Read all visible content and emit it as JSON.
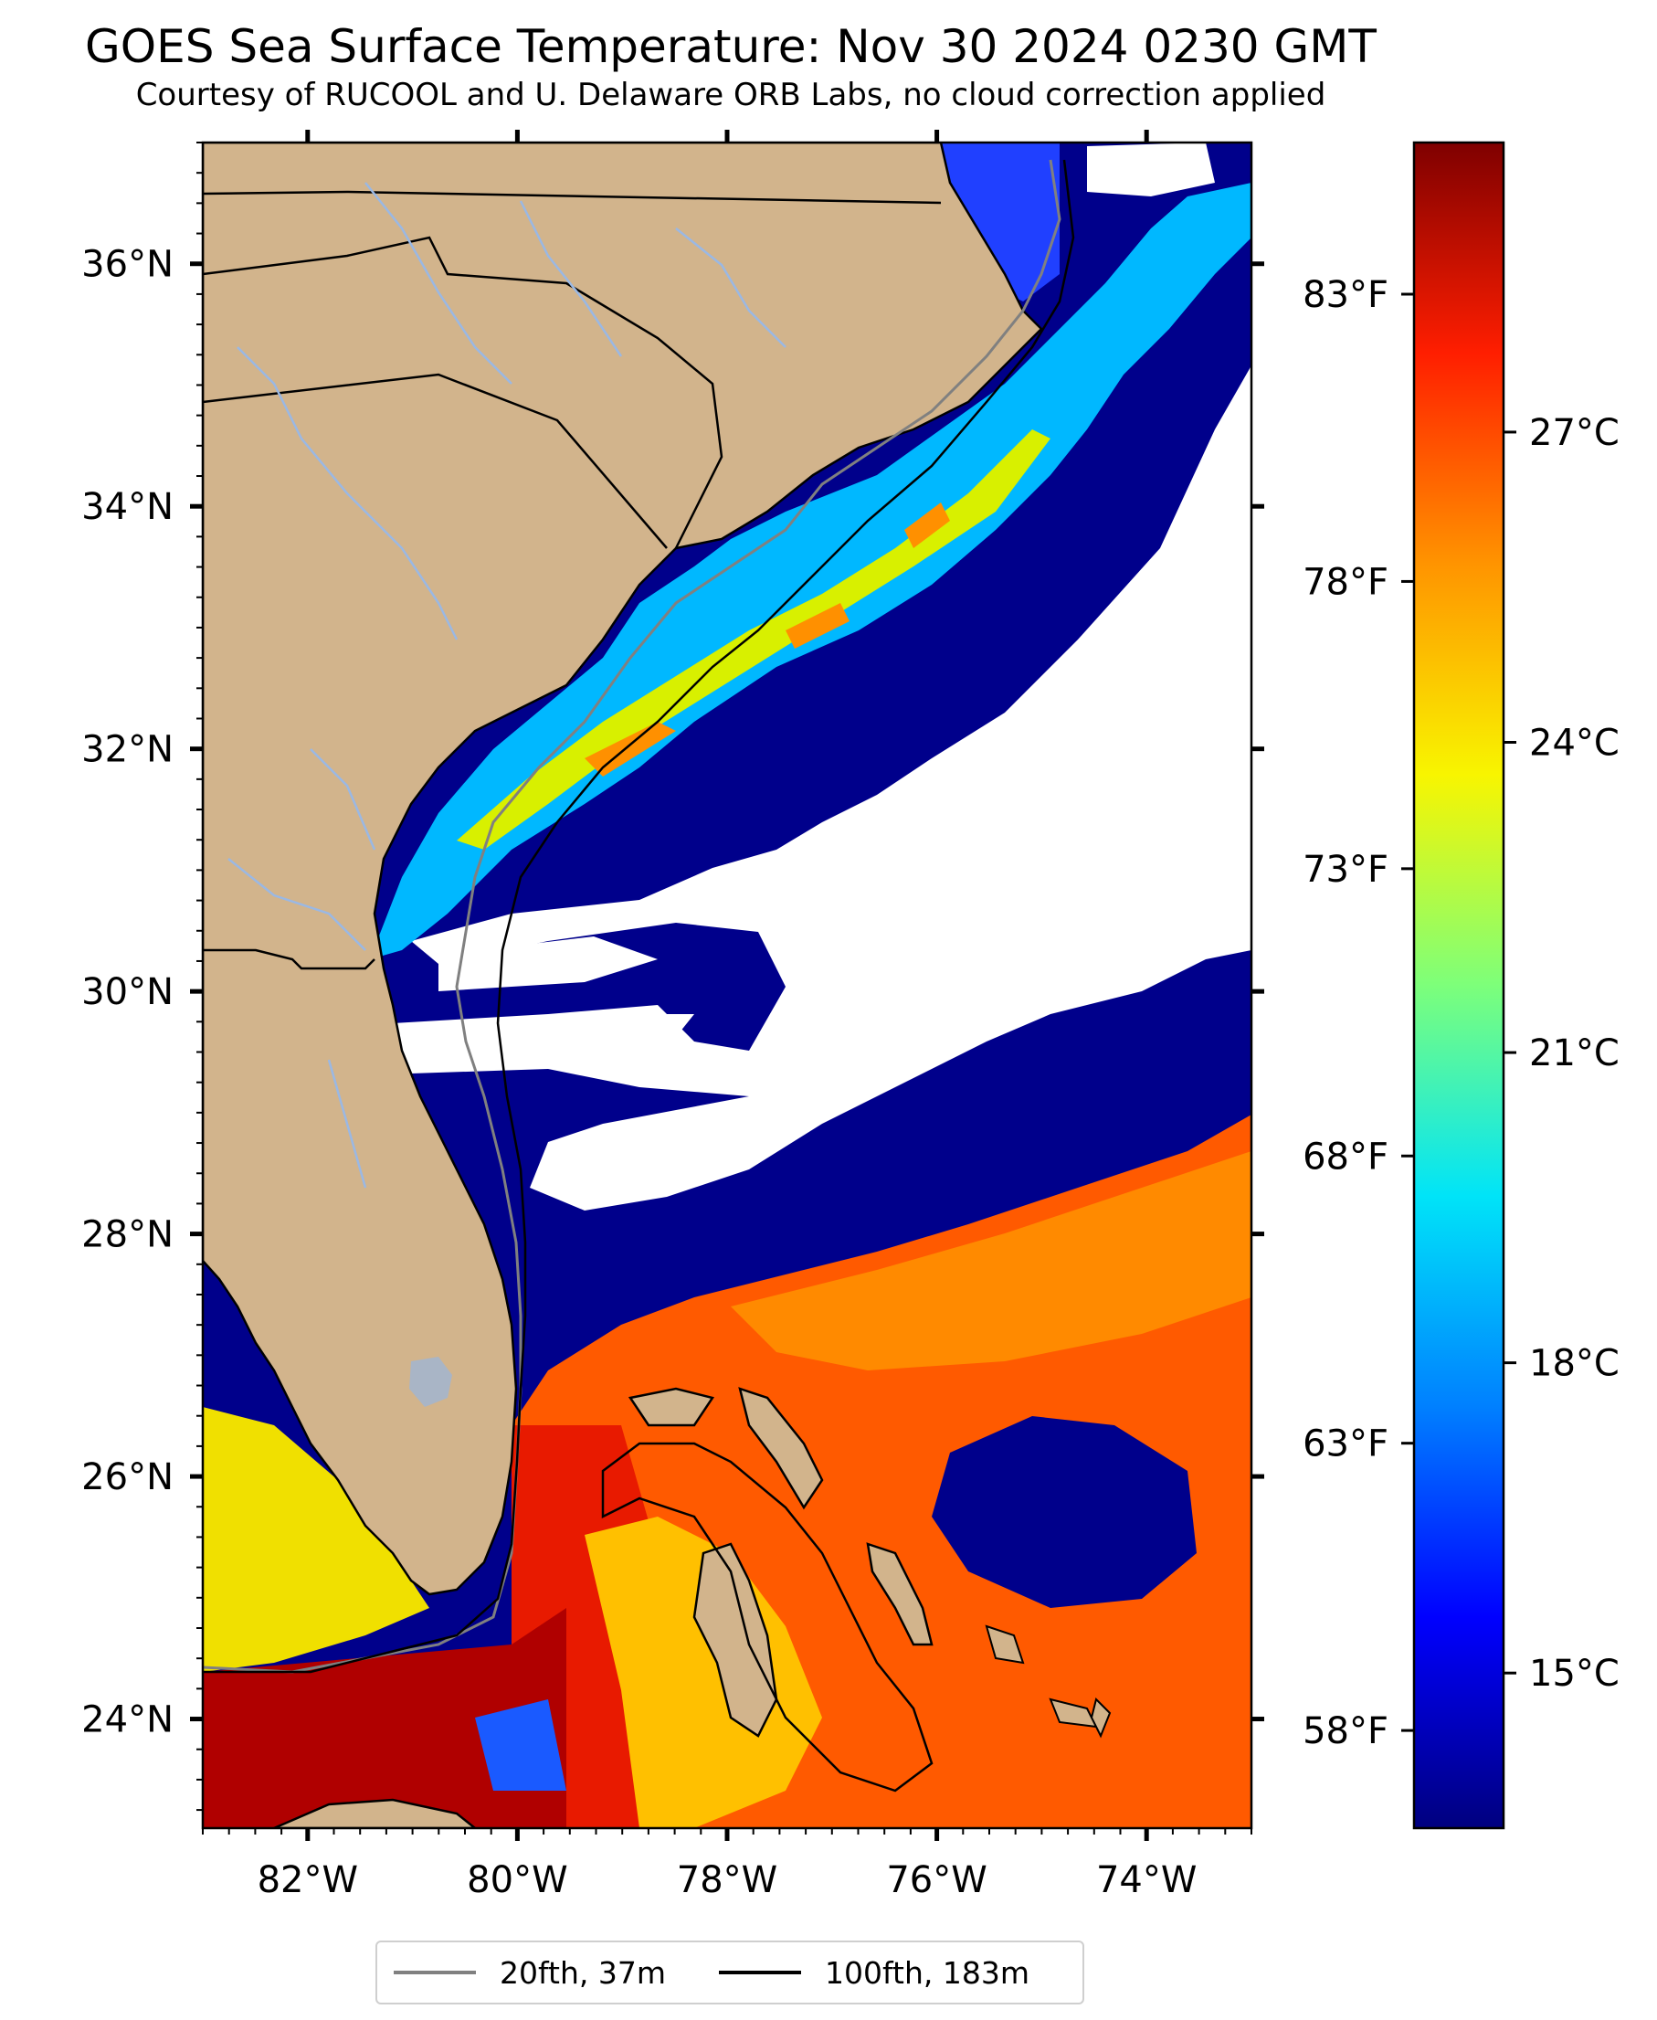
{
  "title": "GOES Sea Surface Temperature: Nov 30 2024 0230 GMT",
  "subtitle": "Courtesy of RUCOOL and U. Delaware ORB Labs, no cloud correction applied",
  "map": {
    "lon_range": [
      -83,
      -73
    ],
    "lat_range": [
      23.1,
      37.0
    ],
    "lat_ticks": [
      {
        "value": 36,
        "label": "36°N"
      },
      {
        "value": 34,
        "label": "34°N"
      },
      {
        "value": 32,
        "label": "32°N"
      },
      {
        "value": 30,
        "label": "30°N"
      },
      {
        "value": 28,
        "label": "28°N"
      },
      {
        "value": 26,
        "label": "26°N"
      },
      {
        "value": 24,
        "label": "24°N"
      }
    ],
    "lon_ticks": [
      {
        "value": -82,
        "label": "82°W"
      },
      {
        "value": -80,
        "label": "80°W"
      },
      {
        "value": -78,
        "label": "78°W"
      },
      {
        "value": -76,
        "label": "76°W"
      },
      {
        "value": -74,
        "label": "74°W"
      }
    ],
    "colors": {
      "land": "#d2b48c",
      "cloud": "#ffffff",
      "cold_water": "#00008b",
      "rivers": "#9ab8e4",
      "borders": "#000000"
    }
  },
  "colorbar": {
    "min_c": 13.5,
    "max_c": 29.8,
    "celsius_ticks": [
      {
        "value": 27,
        "label": "27°C"
      },
      {
        "value": 24,
        "label": "24°C"
      },
      {
        "value": 21,
        "label": "21°C"
      },
      {
        "value": 18,
        "label": "18°C"
      },
      {
        "value": 15,
        "label": "15°C"
      }
    ],
    "fahrenheit_ticks": [
      {
        "value": 83,
        "label": "83°F"
      },
      {
        "value": 78,
        "label": "78°F"
      },
      {
        "value": 73,
        "label": "73°F"
      },
      {
        "value": 68,
        "label": "68°F"
      },
      {
        "value": 63,
        "label": "63°F"
      },
      {
        "value": 58,
        "label": "58°F"
      }
    ],
    "gradient": [
      "#00007f",
      "#0000ff",
      "#0080ff",
      "#00e4f8",
      "#7dff7a",
      "#f8f500",
      "#ff9400",
      "#ff1e00",
      "#7f0000"
    ]
  },
  "legend": [
    {
      "label": "20fth, 37m",
      "color": "#808080"
    },
    {
      "label": "100fth, 183m",
      "color": "#000000"
    }
  ]
}
